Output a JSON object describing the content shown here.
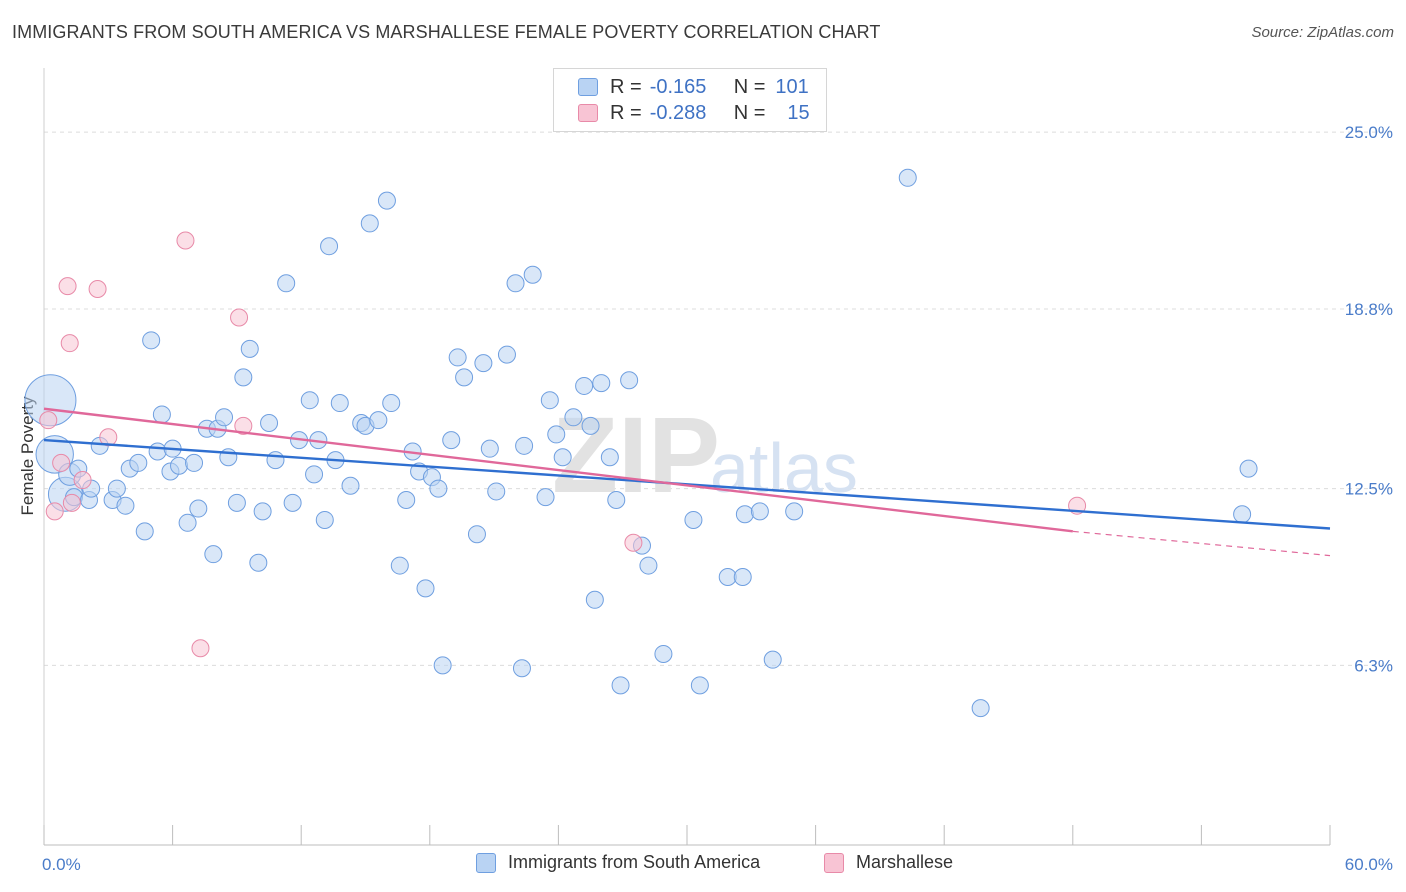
{
  "title": "IMMIGRANTS FROM SOUTH AMERICA VS MARSHALLESE FEMALE POVERTY CORRELATION CHART",
  "source": "Source: ZipAtlas.com",
  "watermark": {
    "zip": "ZIP",
    "atlas": "atlas"
  },
  "legend": {
    "r_label": "R =",
    "n_label": "N =",
    "rows": [
      {
        "r": "-0.165",
        "n": "101",
        "fill": "#b9d3f3",
        "stroke": "#6f9fe0"
      },
      {
        "r": "-0.288",
        "n": "15",
        "fill": "#f8c4d4",
        "stroke": "#e88aa8"
      }
    ]
  },
  "chart_data": {
    "type": "scatter",
    "title": "IMMIGRANTS FROM SOUTH AMERICA VS MARSHALLESE FEMALE POVERTY CORRELATION CHART",
    "xlabel": "",
    "ylabel": "Female Poverty",
    "xlim": [
      0,
      60
    ],
    "ylim": [
      0,
      26.9
    ],
    "x_tick_labels": [
      "0.0%",
      "60.0%"
    ],
    "y_ticks": [
      6.3,
      12.5,
      18.8,
      25.0
    ],
    "y_tick_labels": [
      "6.3%",
      "12.5%",
      "18.8%",
      "25.0%"
    ],
    "grid": "horizontal dashed",
    "legend_position": "top-center and bottom",
    "series": [
      {
        "name": "Immigrants from South America",
        "color": "#6f9fe0",
        "fill": "#b9d3f3",
        "trend": {
          "x0": 0,
          "y0": 14.2,
          "x1": 60,
          "y1": 11.1
        },
        "points": [
          [
            0.3,
            15.6,
            3
          ],
          [
            0.5,
            13.7,
            2.2
          ],
          [
            1.0,
            12.3,
            2
          ],
          [
            1.2,
            13.0,
            1.3
          ],
          [
            1.4,
            12.2,
            1
          ],
          [
            1.6,
            13.2,
            1
          ],
          [
            2.1,
            12.1,
            1
          ],
          [
            2.2,
            12.5,
            1
          ],
          [
            2.6,
            14.0,
            1
          ],
          [
            3.2,
            12.1,
            1
          ],
          [
            3.4,
            12.5,
            1
          ],
          [
            3.8,
            11.9,
            1
          ],
          [
            4.0,
            13.2,
            1
          ],
          [
            4.4,
            13.4,
            1
          ],
          [
            4.7,
            11.0,
            1
          ],
          [
            5.0,
            17.7,
            1
          ],
          [
            5.3,
            13.8,
            1
          ],
          [
            5.5,
            15.1,
            1
          ],
          [
            5.9,
            13.1,
            1
          ],
          [
            6.0,
            13.9,
            1
          ],
          [
            6.3,
            13.3,
            1
          ],
          [
            6.7,
            11.3,
            1
          ],
          [
            7.0,
            13.4,
            1
          ],
          [
            7.2,
            11.8,
            1
          ],
          [
            7.6,
            14.6,
            1
          ],
          [
            7.9,
            10.2,
            1
          ],
          [
            8.1,
            14.6,
            1
          ],
          [
            8.4,
            15.0,
            1
          ],
          [
            8.6,
            13.6,
            1
          ],
          [
            9.0,
            12.0,
            1
          ],
          [
            9.3,
            16.4,
            1
          ],
          [
            9.6,
            17.4,
            1
          ],
          [
            10.0,
            9.9,
            1
          ],
          [
            10.2,
            11.7,
            1
          ],
          [
            10.5,
            14.8,
            1
          ],
          [
            10.8,
            13.5,
            1
          ],
          [
            11.3,
            19.7,
            1
          ],
          [
            11.6,
            12.0,
            1
          ],
          [
            11.9,
            14.2,
            1
          ],
          [
            12.4,
            15.6,
            1
          ],
          [
            12.6,
            13.0,
            1
          ],
          [
            12.8,
            14.2,
            1
          ],
          [
            13.1,
            11.4,
            1
          ],
          [
            13.3,
            21.0,
            1
          ],
          [
            13.6,
            13.5,
            1
          ],
          [
            13.8,
            15.5,
            1
          ],
          [
            14.3,
            12.6,
            1
          ],
          [
            14.8,
            14.8,
            1
          ],
          [
            15.0,
            14.7,
            1
          ],
          [
            15.2,
            21.8,
            1
          ],
          [
            15.6,
            14.9,
            1
          ],
          [
            16.0,
            22.6,
            1
          ],
          [
            16.2,
            15.5,
            1
          ],
          [
            16.6,
            9.8,
            1
          ],
          [
            16.9,
            12.1,
            1
          ],
          [
            17.2,
            13.8,
            1
          ],
          [
            17.5,
            13.1,
            1
          ],
          [
            17.8,
            9.0,
            1
          ],
          [
            18.1,
            12.9,
            1
          ],
          [
            18.4,
            12.5,
            1
          ],
          [
            18.6,
            6.3,
            1
          ],
          [
            19.0,
            14.2,
            1
          ],
          [
            19.3,
            17.1,
            1
          ],
          [
            19.6,
            16.4,
            1
          ],
          [
            20.2,
            10.9,
            1
          ],
          [
            20.5,
            16.9,
            1
          ],
          [
            20.8,
            13.9,
            1
          ],
          [
            21.1,
            12.4,
            1
          ],
          [
            21.6,
            17.2,
            1
          ],
          [
            22.0,
            19.7,
            1
          ],
          [
            22.3,
            6.2,
            1
          ],
          [
            22.4,
            14.0,
            1
          ],
          [
            22.8,
            20.0,
            1
          ],
          [
            23.4,
            12.2,
            1
          ],
          [
            23.6,
            15.6,
            1
          ],
          [
            23.9,
            14.4,
            1
          ],
          [
            24.2,
            13.6,
            1
          ],
          [
            24.7,
            15.0,
            1
          ],
          [
            25.2,
            16.1,
            1
          ],
          [
            25.5,
            14.7,
            1
          ],
          [
            25.7,
            8.6,
            1
          ],
          [
            26.0,
            16.2,
            1
          ],
          [
            26.4,
            13.6,
            1
          ],
          [
            26.7,
            12.1,
            1
          ],
          [
            26.9,
            5.6,
            1
          ],
          [
            27.3,
            16.3,
            1
          ],
          [
            27.9,
            10.5,
            1
          ],
          [
            28.2,
            9.8,
            1
          ],
          [
            28.9,
            6.7,
            1
          ],
          [
            30.3,
            11.4,
            1
          ],
          [
            30.6,
            5.6,
            1
          ],
          [
            31.9,
            9.4,
            1
          ],
          [
            32.6,
            9.4,
            1
          ],
          [
            32.7,
            11.6,
            1
          ],
          [
            33.4,
            11.7,
            1
          ],
          [
            34.0,
            6.5,
            1
          ],
          [
            35.0,
            11.7,
            1
          ],
          [
            40.3,
            23.4,
            1
          ],
          [
            43.7,
            4.8,
            1
          ],
          [
            55.9,
            11.6,
            1
          ],
          [
            56.2,
            13.2,
            1
          ]
        ]
      },
      {
        "name": "Marshallese",
        "color": "#e88aa8",
        "fill": "#f8c4d4",
        "trend": {
          "x0": 0,
          "y0": 15.3,
          "x1": 48.0,
          "y1": 11.0,
          "dash_x1": 60,
          "dash_y1": 10.15
        },
        "points": [
          [
            0.2,
            14.9,
            1
          ],
          [
            0.5,
            11.7,
            1
          ],
          [
            0.8,
            13.4,
            1
          ],
          [
            1.1,
            19.6,
            1
          ],
          [
            1.2,
            17.6,
            1
          ],
          [
            1.3,
            12.0,
            1
          ],
          [
            1.8,
            12.8,
            1
          ],
          [
            2.5,
            19.5,
            1
          ],
          [
            3.0,
            14.3,
            1
          ],
          [
            6.6,
            21.2,
            1
          ],
          [
            7.3,
            6.9,
            1
          ],
          [
            9.1,
            18.5,
            1
          ],
          [
            9.3,
            14.7,
            1
          ],
          [
            27.5,
            10.6,
            1
          ],
          [
            48.2,
            11.9,
            1
          ]
        ]
      }
    ]
  }
}
